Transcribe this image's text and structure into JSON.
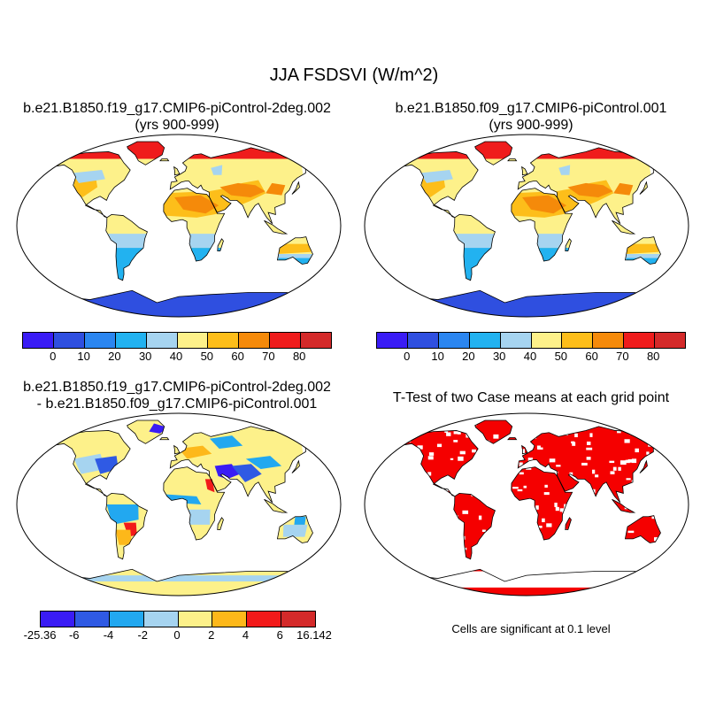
{
  "figure": {
    "title": "JJA FSDSVI (W/m^2)"
  },
  "panels": {
    "top_left": {
      "title_line1": "b.e21.B1850.f19_g17.CMIP6-piControl-2deg.002",
      "title_line2": "(yrs 900-999)"
    },
    "top_right": {
      "title_line1": "b.e21.B1850.f09_g17.CMIP6-piControl.001",
      "title_line2": "(yrs 900-999)"
    },
    "bottom_left": {
      "title_line1": "b.e21.B1850.f19_g17.CMIP6-piControl-2deg.002",
      "title_line2": "- b.e21.B1850.f09_g17.CMIP6-piControl.001"
    },
    "bottom_right": {
      "title_line1": "T-Test of two Case means at each grid point",
      "note": "Cells are significant at 0.1 level"
    }
  },
  "colorbars": {
    "absolute": {
      "colors": [
        "#3a1cf5",
        "#2f4fe0",
        "#2b86f0",
        "#22b2f0",
        "#a6d4f0",
        "#fdf18a",
        "#fdbe1a",
        "#f58a0a",
        "#ef1c1c",
        "#d42a2a"
      ],
      "labels": [
        "0",
        "10",
        "20",
        "30",
        "40",
        "50",
        "60",
        "70",
        "80"
      ]
    },
    "difference": {
      "colors": [
        "#3a1cf5",
        "#2f5ae4",
        "#22a8f0",
        "#a6d4f0",
        "#fdf18a",
        "#fdb81a",
        "#f21a1a",
        "#d42a2a"
      ],
      "labels": [
        "-25.36",
        "-6",
        "-4",
        "-2",
        "0",
        "2",
        "4",
        "6",
        "16.142"
      ]
    }
  },
  "map_colors": {
    "ocean": "#ffffff",
    "outline": "#000000",
    "significant": "#f50000"
  }
}
